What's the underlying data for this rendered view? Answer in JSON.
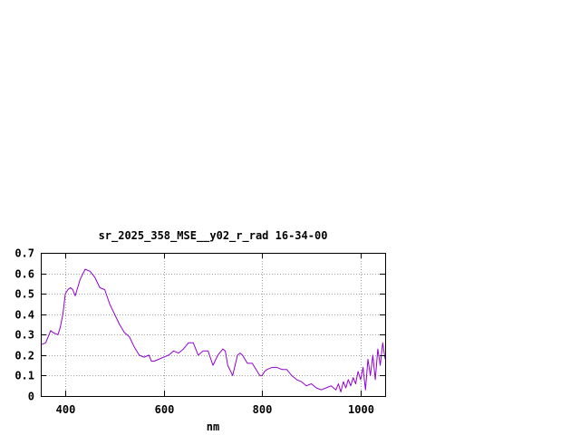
{
  "chart_data": {
    "type": "line",
    "title": "sr_2025_358_MSE__y02_r_rad 16-34-00",
    "xlabel": "nm",
    "ylabel": "",
    "xlim": [
      350,
      1050
    ],
    "ylim": [
      0,
      0.7
    ],
    "x_ticks": [
      400,
      600,
      800,
      1000
    ],
    "x_tick_labels": [
      "400",
      "600",
      "800",
      "1000"
    ],
    "y_ticks": [
      0,
      0.1,
      0.2,
      0.3,
      0.4,
      0.5,
      0.6,
      0.7
    ],
    "y_tick_labels": [
      "0",
      "0.1",
      "0.2",
      "0.3",
      "0.4",
      "0.5",
      "0.6",
      "0.7"
    ],
    "grid": true,
    "legend": "none",
    "line_color": "#9400d3",
    "series": [
      {
        "x": [
          350,
          360,
          370,
          375,
          385,
          390,
          395,
          400,
          405,
          410,
          415,
          420,
          425,
          430,
          440,
          450,
          460,
          470,
          480,
          490,
          500,
          510,
          520,
          530,
          540,
          550,
          560,
          570,
          575,
          580,
          590,
          600,
          610,
          620,
          630,
          640,
          650,
          660,
          670,
          680,
          690,
          700,
          710,
          720,
          725,
          730,
          740,
          750,
          755,
          760,
          765,
          770,
          780,
          790,
          795,
          800,
          805,
          810,
          820,
          830,
          840,
          850,
          860,
          870,
          880,
          890,
          900,
          910,
          920,
          930,
          940,
          950,
          955,
          960,
          965,
          970,
          975,
          980,
          985,
          990,
          995,
          1000,
          1005,
          1010,
          1015,
          1020,
          1025,
          1030,
          1035,
          1040,
          1045,
          1050
        ],
        "y": [
          0.25,
          0.26,
          0.32,
          0.31,
          0.3,
          0.34,
          0.4,
          0.5,
          0.52,
          0.53,
          0.52,
          0.49,
          0.53,
          0.57,
          0.62,
          0.61,
          0.58,
          0.53,
          0.52,
          0.45,
          0.4,
          0.35,
          0.31,
          0.29,
          0.24,
          0.2,
          0.19,
          0.2,
          0.17,
          0.17,
          0.18,
          0.19,
          0.2,
          0.22,
          0.21,
          0.23,
          0.26,
          0.26,
          0.2,
          0.22,
          0.22,
          0.15,
          0.2,
          0.23,
          0.22,
          0.15,
          0.1,
          0.2,
          0.21,
          0.2,
          0.18,
          0.16,
          0.16,
          0.12,
          0.1,
          0.1,
          0.12,
          0.13,
          0.14,
          0.14,
          0.13,
          0.13,
          0.1,
          0.08,
          0.07,
          0.05,
          0.06,
          0.04,
          0.03,
          0.04,
          0.05,
          0.03,
          0.06,
          0.02,
          0.07,
          0.04,
          0.08,
          0.05,
          0.09,
          0.06,
          0.12,
          0.08,
          0.14,
          0.03,
          0.18,
          0.1,
          0.2,
          0.08,
          0.23,
          0.15,
          0.26,
          0.18
        ]
      }
    ]
  }
}
